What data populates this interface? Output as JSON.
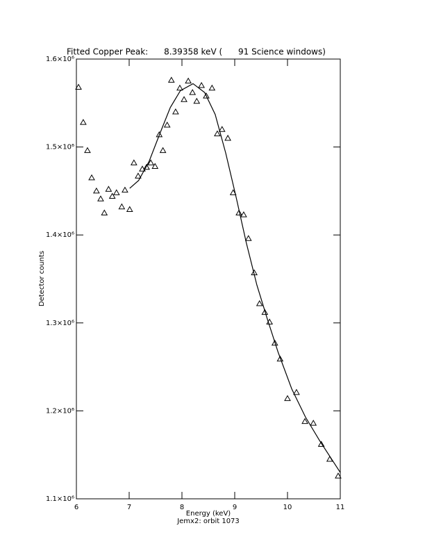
{
  "chart_data": {
    "type": "scatter",
    "title": "Fitted Copper Peak:      8.39358 keV (      91 Science windows)",
    "x_label": "Energy (keV)",
    "subtitle": "Jemx2: orbit 1073",
    "y_label": "Detector counts",
    "xlim": [
      6,
      11
    ],
    "xticks": [
      6,
      7,
      8,
      9,
      10,
      11
    ],
    "ylim": [
      1100000,
      1600000
    ],
    "yticks": [
      {
        "value": 1100000,
        "label": "1.1×10⁶"
      },
      {
        "value": 1200000,
        "label": "1.2×10⁶"
      },
      {
        "value": 1300000,
        "label": "1.3×10⁶"
      },
      {
        "value": 1400000,
        "label": "1.4×10⁶"
      },
      {
        "value": 1500000,
        "label": "1.5×10⁶"
      },
      {
        "value": 1600000,
        "label": "1.6×10⁶"
      }
    ],
    "series": [
      {
        "marker": "triangle",
        "color": "#000000",
        "x": [
          6.04,
          6.13,
          6.21,
          6.29,
          6.38,
          6.46,
          6.53,
          6.61,
          6.68,
          6.76,
          6.86,
          6.92,
          7.01,
          7.09,
          7.17,
          7.25,
          7.33,
          7.41,
          7.49,
          7.57,
          7.64,
          7.72,
          7.8,
          7.88,
          7.96,
          8.04,
          8.12,
          8.2,
          8.28,
          8.37,
          8.46,
          8.57,
          8.67,
          8.76,
          8.87,
          8.97,
          9.08,
          9.17,
          9.26,
          9.37,
          9.47,
          9.57,
          9.66,
          9.76,
          9.86,
          10.0,
          10.17,
          10.33,
          10.49,
          10.64,
          10.8,
          10.96
        ],
        "values": [
          1568000,
          1528000,
          1496000,
          1465000,
          1450000,
          1441000,
          1425000,
          1452000,
          1444000,
          1448000,
          1432000,
          1451000,
          1429000,
          1482000,
          1467000,
          1475000,
          1477000,
          1482000,
          1478000,
          1514000,
          1496000,
          1525000,
          1576000,
          1540000,
          1567000,
          1554000,
          1575000,
          1562000,
          1552000,
          1570000,
          1558000,
          1567000,
          1515000,
          1520000,
          1510000,
          1448000,
          1425000,
          1423000,
          1396000,
          1357000,
          1322000,
          1312000,
          1301000,
          1277000,
          1259000,
          1214000,
          1221000,
          1188000,
          1186000,
          1162000,
          1145000,
          1126000
        ]
      },
      {
        "marker": "line",
        "color": "#000000",
        "x": [
          7.01,
          7.18,
          7.38,
          7.58,
          7.78,
          7.97,
          8.21,
          8.43,
          8.63,
          8.83,
          9.03,
          9.22,
          9.42,
          9.62,
          9.82,
          10.08,
          10.34,
          10.61,
          11.0
        ],
        "values": [
          1453000,
          1462000,
          1484000,
          1515000,
          1545000,
          1564000,
          1572000,
          1562000,
          1537000,
          1493000,
          1442000,
          1391000,
          1343000,
          1304000,
          1267000,
          1225000,
          1193000,
          1166000,
          1130000
        ]
      }
    ]
  }
}
